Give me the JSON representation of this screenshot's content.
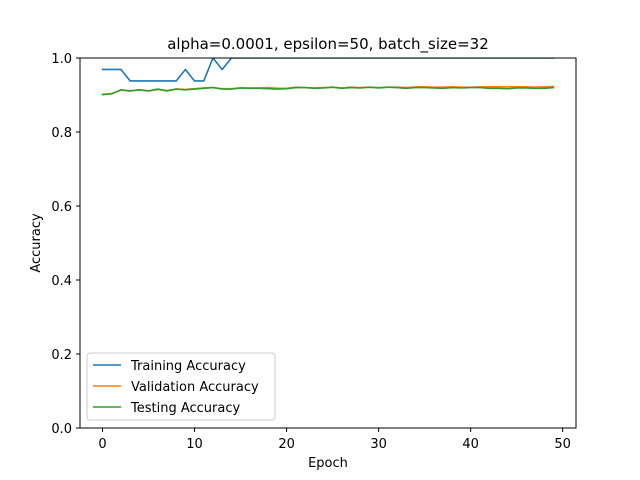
{
  "chart_data": {
    "type": "line",
    "title": "alpha=0.0001, epsilon=50, batch_size=32",
    "xlabel": "Epoch",
    "ylabel": "Accuracy",
    "xlim": [
      -2.45,
      51.45
    ],
    "ylim": [
      0.0,
      1.0
    ],
    "xticks": [
      0,
      10,
      20,
      30,
      40,
      50
    ],
    "yticks": [
      0.0,
      0.2,
      0.4,
      0.6,
      0.8,
      1.0
    ],
    "ytick_labels": [
      "0.0",
      "0.2",
      "0.4",
      "0.6",
      "0.8",
      "1.0"
    ],
    "grid": false,
    "legend_position": "lower-left",
    "series": [
      {
        "name": "Training Accuracy",
        "color": "#1f77b4",
        "x": [
          0,
          1,
          2,
          3,
          4,
          5,
          6,
          7,
          8,
          9,
          10,
          11,
          12,
          13,
          14,
          15,
          16,
          17,
          18,
          19,
          20,
          21,
          22,
          23,
          24,
          25,
          26,
          27,
          28,
          29,
          30,
          31,
          32,
          33,
          34,
          35,
          36,
          37,
          38,
          39,
          40,
          41,
          42,
          43,
          44,
          45,
          46,
          47,
          48,
          49
        ],
        "y": [
          0.969,
          0.969,
          0.969,
          0.938,
          0.938,
          0.938,
          0.938,
          0.938,
          0.938,
          0.969,
          0.938,
          0.938,
          1.0,
          0.969,
          1.0,
          1.0,
          1.0,
          1.0,
          1.0,
          1.0,
          1.0,
          1.0,
          1.0,
          1.0,
          1.0,
          1.0,
          1.0,
          1.0,
          1.0,
          1.0,
          1.0,
          1.0,
          1.0,
          1.0,
          1.0,
          1.0,
          1.0,
          1.0,
          1.0,
          1.0,
          1.0,
          1.0,
          1.0,
          1.0,
          1.0,
          1.0,
          1.0,
          1.0,
          1.0,
          1.0
        ]
      },
      {
        "name": "Validation Accuracy",
        "color": "#ff7f0e",
        "x": [
          0,
          1,
          2,
          3,
          4,
          5,
          6,
          7,
          8,
          9,
          10,
          11,
          12,
          13,
          14,
          15,
          16,
          17,
          18,
          19,
          20,
          21,
          22,
          23,
          24,
          25,
          26,
          27,
          28,
          29,
          30,
          31,
          32,
          33,
          34,
          35,
          36,
          37,
          38,
          39,
          40,
          41,
          42,
          43,
          44,
          45,
          46,
          47,
          48,
          49
        ],
        "y": [
          0.902,
          0.904,
          0.913,
          0.911,
          0.914,
          0.911,
          0.915,
          0.912,
          0.916,
          0.915,
          0.917,
          0.919,
          0.92,
          0.917,
          0.917,
          0.919,
          0.919,
          0.919,
          0.92,
          0.918,
          0.918,
          0.921,
          0.92,
          0.919,
          0.92,
          0.921,
          0.919,
          0.921,
          0.92,
          0.921,
          0.92,
          0.921,
          0.921,
          0.92,
          0.922,
          0.922,
          0.921,
          0.921,
          0.922,
          0.921,
          0.921,
          0.922,
          0.922,
          0.922,
          0.922,
          0.922,
          0.922,
          0.921,
          0.922,
          0.923
        ]
      },
      {
        "name": "Testing Accuracy",
        "color": "#2ca02c",
        "x": [
          0,
          1,
          2,
          3,
          4,
          5,
          6,
          7,
          8,
          9,
          10,
          11,
          12,
          13,
          14,
          15,
          16,
          17,
          18,
          19,
          20,
          21,
          22,
          23,
          24,
          25,
          26,
          27,
          28,
          29,
          30,
          31,
          32,
          33,
          34,
          35,
          36,
          37,
          38,
          39,
          40,
          41,
          42,
          43,
          44,
          45,
          46,
          47,
          48,
          49
        ],
        "y": [
          0.901,
          0.903,
          0.914,
          0.911,
          0.914,
          0.911,
          0.916,
          0.911,
          0.916,
          0.914,
          0.916,
          0.918,
          0.92,
          0.916,
          0.916,
          0.919,
          0.918,
          0.918,
          0.917,
          0.916,
          0.917,
          0.92,
          0.92,
          0.918,
          0.919,
          0.921,
          0.918,
          0.92,
          0.919,
          0.921,
          0.919,
          0.921,
          0.92,
          0.918,
          0.92,
          0.92,
          0.919,
          0.918,
          0.92,
          0.919,
          0.92,
          0.92,
          0.918,
          0.918,
          0.917,
          0.919,
          0.919,
          0.918,
          0.918,
          0.92
        ]
      }
    ]
  }
}
